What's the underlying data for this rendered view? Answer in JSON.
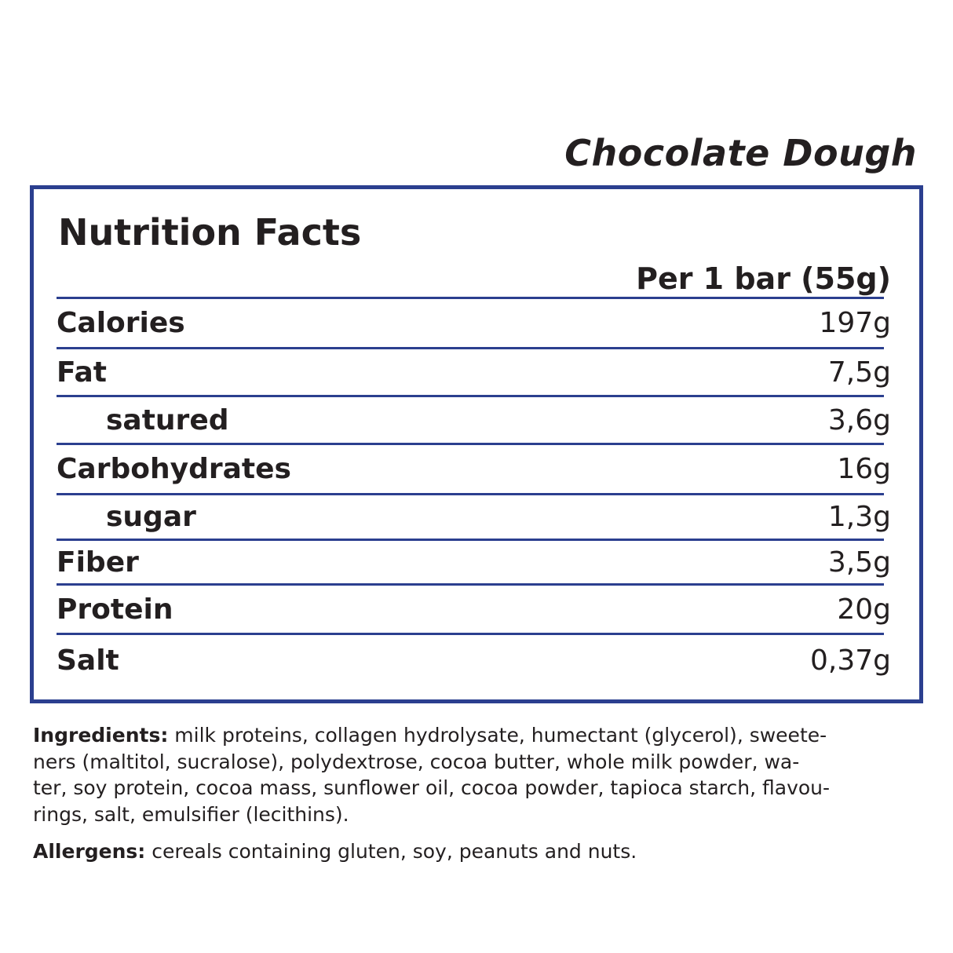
{
  "product_name": "Chocolate Dough",
  "panel": {
    "title": "Nutrition Facts",
    "serving": "Per 1 bar (55g)",
    "border_color": "#2b3f8f",
    "rows": [
      {
        "label": "Calories",
        "value": "197g",
        "sub": false
      },
      {
        "label": "Fat",
        "value": "7,5g",
        "sub": false
      },
      {
        "label": "satured",
        "value": "3,6g",
        "sub": true
      },
      {
        "label": "Carbohydrates",
        "value": "16g",
        "sub": false
      },
      {
        "label": "sugar",
        "value": "1,3g",
        "sub": true
      },
      {
        "label": "Fiber",
        "value": "3,5g",
        "sub": false
      },
      {
        "label": "Protein",
        "value": "20g",
        "sub": false
      },
      {
        "label": "Salt",
        "value": "0,37g",
        "sub": false
      }
    ]
  },
  "ingredients": {
    "label": "Ingredients:",
    "lines": [
      " milk proteins, collagen hydrolysate, humectant (glycerol), sweete-",
      "ners (maltitol, sucralose), polydextrose, cocoa butter, whole milk powder, wa-",
      "ter, soy protein, cocoa mass, sunflower oil, cocoa powder, tapioca starch, flavou-",
      "rings, salt, emulsifier (lecithins)."
    ]
  },
  "allergens": {
    "label": "Allergens:",
    "text": " cereals containing gluten, soy, peanuts and nuts."
  }
}
